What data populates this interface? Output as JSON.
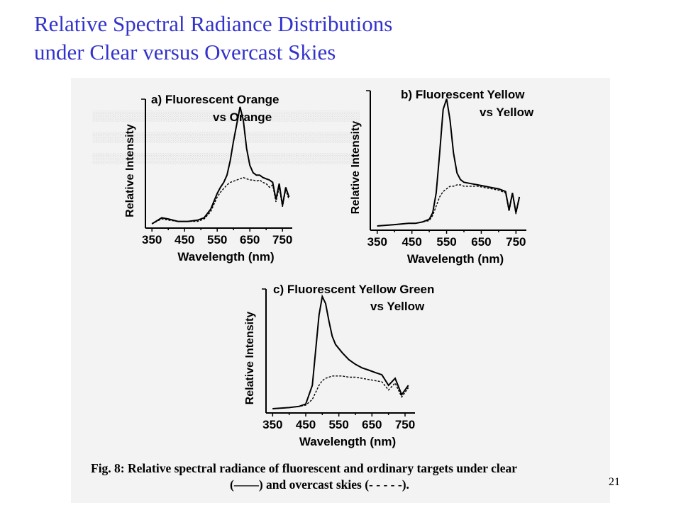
{
  "slide": {
    "title_line1": "Relative Spectral Radiance Distributions",
    "title_line2": "under Clear versus Overcast Skies",
    "caption_line1": "Fig. 8: Relative spectral radiance of fluorescent and ordinary targets under clear",
    "caption_line2": "(——) and overcast skies (- - - - -).",
    "page_number": "21",
    "colors": {
      "title": "#3333cc",
      "background": "#ffffff",
      "scan_background": "#f3f3f3"
    }
  },
  "chart_data": [
    {
      "type": "line",
      "title": "a) Fluorescent Orange vs Orange",
      "title_line1": "a) Fluorescent Orange",
      "title_line2": "vs Orange",
      "xlabel": "Wavelength (nm)",
      "ylabel": "Relative Intensity",
      "xticks": [
        "350",
        "450",
        "550",
        "650",
        "750"
      ],
      "xlim": [
        330,
        780
      ],
      "ylim": [
        0,
        1
      ],
      "grid": false,
      "x": [
        350,
        380,
        400,
        430,
        460,
        490,
        510,
        530,
        550,
        560,
        570,
        580,
        590,
        600,
        610,
        620,
        630,
        640,
        650,
        660,
        670,
        680,
        690,
        700,
        710,
        720,
        730,
        740,
        750,
        760,
        770
      ],
      "series": [
        {
          "values": [
            0.0,
            0.05,
            0.04,
            0.02,
            0.02,
            0.03,
            0.05,
            0.12,
            0.25,
            0.3,
            0.34,
            0.4,
            0.52,
            0.68,
            0.82,
            0.96,
            0.85,
            0.62,
            0.48,
            0.42,
            0.4,
            0.4,
            0.38,
            0.37,
            0.36,
            0.34,
            0.2,
            0.33,
            0.15,
            0.3,
            0.22
          ],
          "style": "solid"
        },
        {
          "values": [
            0.0,
            0.04,
            0.03,
            0.02,
            0.02,
            0.02,
            0.04,
            0.1,
            0.22,
            0.26,
            0.29,
            0.32,
            0.34,
            0.35,
            0.36,
            0.37,
            0.38,
            0.37,
            0.36,
            0.36,
            0.35,
            0.36,
            0.34,
            0.33,
            0.3,
            0.32,
            0.18,
            0.3,
            0.14,
            0.28,
            0.2
          ],
          "style": "dashed"
        }
      ]
    },
    {
      "type": "line",
      "title": "b) Fluorescent Yellow vs Yellow",
      "title_line1": "b) Fluorescent Yellow",
      "title_line2": "vs Yellow",
      "xlabel": "Wavelength (nm)",
      "ylabel": "Relative Intensity",
      "xticks": [
        "350",
        "450",
        "550",
        "650",
        "750"
      ],
      "xlim": [
        330,
        780
      ],
      "ylim": [
        0,
        1
      ],
      "grid": false,
      "x": [
        350,
        400,
        440,
        460,
        480,
        500,
        510,
        520,
        530,
        540,
        550,
        560,
        570,
        580,
        590,
        600,
        620,
        640,
        660,
        680,
        700,
        720,
        730,
        740,
        750,
        760
      ],
      "series": [
        {
          "values": [
            0.0,
            0.01,
            0.02,
            0.02,
            0.03,
            0.05,
            0.1,
            0.25,
            0.55,
            0.88,
            0.96,
            0.8,
            0.55,
            0.4,
            0.35,
            0.33,
            0.32,
            0.31,
            0.3,
            0.29,
            0.28,
            0.26,
            0.12,
            0.25,
            0.1,
            0.22
          ],
          "style": "solid"
        },
        {
          "values": [
            0.0,
            0.01,
            0.02,
            0.02,
            0.03,
            0.04,
            0.08,
            0.15,
            0.22,
            0.26,
            0.28,
            0.3,
            0.3,
            0.31,
            0.31,
            0.3,
            0.3,
            0.3,
            0.29,
            0.28,
            0.27,
            0.25,
            0.11,
            0.24,
            0.09,
            0.21
          ],
          "style": "dashed"
        }
      ]
    },
    {
      "type": "line",
      "title": "c) Fluorescent Yellow Green vs Yellow",
      "title_line1": "c) Fluorescent Yellow Green",
      "title_line2": "vs Yellow",
      "xlabel": "Wavelength (nm)",
      "ylabel": "Relative Intensity",
      "xticks": [
        "350",
        "450",
        "550",
        "650",
        "750"
      ],
      "xlim": [
        330,
        780
      ],
      "ylim": [
        0,
        1
      ],
      "grid": false,
      "x": [
        350,
        400,
        430,
        450,
        470,
        480,
        490,
        500,
        510,
        520,
        530,
        540,
        560,
        580,
        600,
        620,
        640,
        660,
        680,
        700,
        720,
        740,
        760
      ],
      "series": [
        {
          "values": [
            0.0,
            0.01,
            0.02,
            0.04,
            0.2,
            0.5,
            0.8,
            0.96,
            0.9,
            0.75,
            0.62,
            0.55,
            0.48,
            0.42,
            0.38,
            0.35,
            0.33,
            0.31,
            0.29,
            0.2,
            0.26,
            0.12,
            0.2
          ],
          "style": "solid"
        },
        {
          "values": [
            0.0,
            0.01,
            0.02,
            0.03,
            0.08,
            0.14,
            0.2,
            0.24,
            0.26,
            0.27,
            0.28,
            0.28,
            0.28,
            0.27,
            0.27,
            0.26,
            0.25,
            0.24,
            0.23,
            0.16,
            0.22,
            0.1,
            0.18
          ],
          "style": "dashed"
        }
      ]
    }
  ]
}
